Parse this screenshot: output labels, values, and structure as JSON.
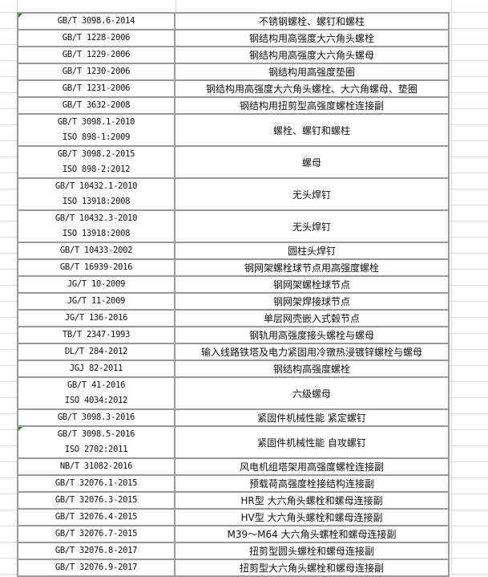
{
  "accent_colors": {
    "border": "#9a9a9a",
    "gridline": "#dadada",
    "comment_flag": "#1f8f2f"
  },
  "rows": [
    {
      "code": [
        "GB/T 3098.6-2014"
      ],
      "desc": "不锈钢螺栓、螺钉和螺柱",
      "flag": true
    },
    {
      "code": [
        "GB/T 1228-2006"
      ],
      "desc": "钢结构用高强度大六角头螺栓"
    },
    {
      "code": [
        "GB/T 1229-2006"
      ],
      "desc": "钢结构用高强度大六角头螺母"
    },
    {
      "code": [
        "GB/T 1230-2006"
      ],
      "desc": "钢结构用高强度垫圈"
    },
    {
      "code": [
        "GB/T 1231-2006"
      ],
      "desc": "钢结构用高强度大六角头螺栓、大六角螺母、垫圈"
    },
    {
      "code": [
        "GB/T 3632-2008"
      ],
      "desc": "钢结构用扭剪型高强度螺栓连接副"
    },
    {
      "code": [
        "GB/T 3098.1-2010",
        "ISO 898-1:2009"
      ],
      "desc": "螺栓、螺钉和螺柱"
    },
    {
      "code": [
        "GB/T 3098.2-2015",
        "ISO 898-2:2012"
      ],
      "desc": "螺母"
    },
    {
      "code": [
        "GB/T 10432.1-2010",
        "ISO 13918:2008"
      ],
      "desc": "无头焊钉"
    },
    {
      "code": [
        "GB/T 10432.3-2010",
        "ISO 13918:2008"
      ],
      "desc": "无头焊钉"
    },
    {
      "code": [
        "GB/T 10433-2002"
      ],
      "desc": "圆柱头焊钉"
    },
    {
      "code": [
        "GB/T 16939-2016"
      ],
      "desc": "钢网架螺栓球节点用高强度螺栓"
    },
    {
      "code": [
        "JG/T 10-2009"
      ],
      "desc": "钢网架螺栓球节点"
    },
    {
      "code": [
        "JG/T 11-2009"
      ],
      "desc": "钢网架焊接球节点"
    },
    {
      "code": [
        "JG/T 136-2016"
      ],
      "desc": "单层网壳嵌入式毂节点"
    },
    {
      "code": [
        "TB/T 2347-1993"
      ],
      "desc": "钢轨用高强度接头螺栓与螺母"
    },
    {
      "code": [
        "DL/T 284-2012"
      ],
      "desc": "输入线路铁塔及电力紧固用冷镦热浸镀锌螺栓与螺母"
    },
    {
      "code": [
        "JGJ 82-2011"
      ],
      "desc": "钢结构高强度螺栓"
    },
    {
      "code": [
        "GB/T 41-2016",
        "ISO 4034:2012"
      ],
      "desc": "六级螺母"
    },
    {
      "code": [
        "GB/T 3098.3-2016"
      ],
      "desc": "紧固件机械性能  紧定螺钉"
    },
    {
      "code": [
        "GB/T 3098.5-2016",
        "ISO 2702:2011"
      ],
      "desc": "紧固件机械性能  自攻螺钉",
      "flag": true
    },
    {
      "code": [
        "NB/T 31082-2016"
      ],
      "desc": "风电机组塔架用高强度螺栓连接副"
    },
    {
      "code": [
        "GB/T 32076.1-2015"
      ],
      "desc": "预载荷高强度栓接结构连接副"
    },
    {
      "code": [
        "GB/T 32076.3-2015"
      ],
      "desc": "HR型 大六角头螺栓和螺母连接副"
    },
    {
      "code": [
        "GB/T 32076.4-2015"
      ],
      "desc": "HV型 大六角头螺栓和螺母连接副"
    },
    {
      "code": [
        "GB/T 32076.7-2015"
      ],
      "desc": "M39～M64 大六角头螺栓和螺母连接副"
    },
    {
      "code": [
        "GB/T 32076.8-2017"
      ],
      "desc": "扭剪型圆头螺栓和螺母连接副"
    },
    {
      "code": [
        "GB/T 32076.9-2017"
      ],
      "desc": "扭剪型大六角头螺栓和螺母连接副"
    }
  ]
}
